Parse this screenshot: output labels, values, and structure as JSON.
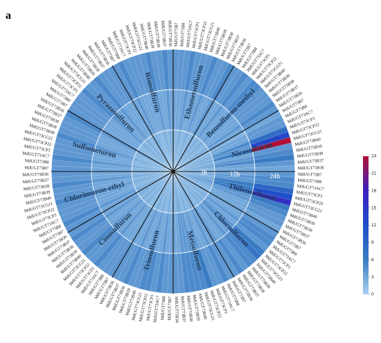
{
  "panel": {
    "label": "a"
  },
  "chart_data": {
    "type": "heatmap",
    "layout": "circular",
    "rings": [
      "3h",
      "12h",
      "24h"
    ],
    "herbicides": [
      {
        "name": "Nicosulfuron",
        "start": 0
      },
      {
        "name": "Thifensulfuron",
        "start": 11
      },
      {
        "name": "Chlorsulfuron",
        "start": 22
      },
      {
        "name": "Metsulfuron",
        "start": 33
      },
      {
        "name": "Trinsulfuron",
        "start": 44
      },
      {
        "name": "Cinosulfuron",
        "start": 55
      },
      {
        "name": "Chlorimuron-ethyl",
        "start": 66
      },
      {
        "name": "Sulfometuron",
        "start": 77
      },
      {
        "name": "Pyrazosulfuron",
        "start": 88
      },
      {
        "name": "Rimsulfuron",
        "start": 99
      },
      {
        "name": "Ethametsulfuron",
        "start": 110
      },
      {
        "name": "Bensulfuron-methyl",
        "start": 121
      }
    ],
    "genes": [
      "MdUGT73B7",
      "MdUGT73B8",
      "MdUGT73AC7",
      "MdUGT73CP3",
      "MdUGT73CP22",
      "MdUGT73CG21",
      "MdUGT73B40",
      "MdUGT73B39",
      "MdUGT73B38",
      "MdUGT73B37",
      "MdUGT73B36"
    ],
    "values": {
      "Nicosulfuron": [
        [
          1,
          2,
          2,
          3,
          2,
          3,
          2,
          3,
          3,
          2,
          2
        ],
        [
          2,
          3,
          3,
          5,
          4,
          6,
          3,
          4,
          5,
          3,
          3
        ],
        [
          3,
          4,
          4,
          8,
          13,
          24,
          4,
          5,
          6,
          4,
          3
        ]
      ],
      "Thifensulfuron": [
        [
          2,
          3,
          2,
          3,
          3,
          4,
          3,
          3,
          2,
          2,
          2
        ],
        [
          3,
          4,
          4,
          6,
          6,
          7,
          4,
          4,
          3,
          3,
          3
        ],
        [
          4,
          5,
          5,
          9,
          12,
          16,
          6,
          5,
          4,
          4,
          3
        ]
      ],
      "Chlorsulfuron": [
        [
          2,
          2,
          3,
          2,
          2,
          3,
          2,
          3,
          2,
          2,
          3
        ],
        [
          3,
          3,
          4,
          3,
          4,
          5,
          3,
          4,
          3,
          3,
          4
        ],
        [
          4,
          5,
          5,
          4,
          6,
          7,
          5,
          5,
          4,
          5,
          4
        ]
      ],
      "Metsulfuron": [
        [
          2,
          3,
          2,
          2,
          3,
          2,
          2,
          3,
          3,
          2,
          2
        ],
        [
          3,
          4,
          3,
          3,
          4,
          3,
          4,
          4,
          4,
          3,
          3
        ],
        [
          4,
          5,
          4,
          4,
          6,
          5,
          5,
          5,
          5,
          4,
          4
        ]
      ],
      "Trinsulfuron": [
        [
          2,
          2,
          3,
          2,
          2,
          3,
          2,
          2,
          3,
          2,
          2
        ],
        [
          3,
          3,
          4,
          3,
          3,
          4,
          3,
          3,
          4,
          3,
          3
        ],
        [
          4,
          4,
          5,
          4,
          5,
          5,
          4,
          4,
          5,
          4,
          4
        ]
      ],
      "Cinosulfuron": [
        [
          2,
          2,
          2,
          3,
          2,
          2,
          3,
          2,
          2,
          3,
          2
        ],
        [
          3,
          3,
          3,
          4,
          3,
          3,
          4,
          3,
          3,
          4,
          3
        ],
        [
          4,
          4,
          4,
          5,
          4,
          4,
          5,
          4,
          4,
          5,
          4
        ]
      ],
      "Chlorimuron-ethyl": [
        [
          2,
          3,
          2,
          2,
          2,
          3,
          2,
          2,
          3,
          2,
          2
        ],
        [
          3,
          4,
          3,
          3,
          3,
          4,
          3,
          3,
          4,
          3,
          3
        ],
        [
          4,
          5,
          4,
          4,
          4,
          5,
          4,
          4,
          5,
          4,
          4
        ]
      ],
      "Sulfometuron": [
        [
          2,
          2,
          3,
          2,
          2,
          2,
          3,
          2,
          2,
          2,
          3
        ],
        [
          3,
          3,
          4,
          3,
          3,
          3,
          4,
          3,
          3,
          3,
          4
        ],
        [
          4,
          4,
          5,
          4,
          4,
          4,
          5,
          4,
          4,
          4,
          5
        ]
      ],
      "Pyrazosulfuron": [
        [
          2,
          2,
          2,
          2,
          3,
          2,
          2,
          3,
          2,
          2,
          2
        ],
        [
          3,
          3,
          3,
          3,
          4,
          3,
          3,
          4,
          3,
          3,
          3
        ],
        [
          4,
          4,
          4,
          4,
          5,
          4,
          4,
          5,
          4,
          4,
          4
        ]
      ],
      "Rimsulfuron": [
        [
          2,
          3,
          2,
          2,
          2,
          2,
          3,
          2,
          2,
          3,
          2
        ],
        [
          3,
          4,
          3,
          3,
          3,
          3,
          4,
          3,
          3,
          4,
          3
        ],
        [
          4,
          5,
          4,
          4,
          4,
          4,
          5,
          4,
          4,
          5,
          4
        ]
      ],
      "Ethametsulfuron": [
        [
          2,
          2,
          2,
          3,
          2,
          2,
          2,
          3,
          2,
          2,
          3
        ],
        [
          3,
          3,
          3,
          4,
          3,
          3,
          3,
          4,
          3,
          3,
          4
        ],
        [
          4,
          4,
          4,
          5,
          4,
          4,
          4,
          5,
          4,
          4,
          5
        ]
      ],
      "Bensulfuron-methyl": [
        [
          2,
          2,
          3,
          2,
          2,
          3,
          2,
          2,
          2,
          3,
          2
        ],
        [
          3,
          3,
          4,
          3,
          3,
          4,
          3,
          3,
          3,
          4,
          3
        ],
        [
          4,
          4,
          5,
          4,
          5,
          5,
          4,
          4,
          4,
          5,
          4
        ]
      ]
    },
    "colorbar": {
      "ticks": [
        0,
        3,
        6,
        9,
        12,
        15,
        18,
        21,
        24
      ],
      "range": [
        0,
        24
      ],
      "colors": [
        "#a9d1f0",
        "#3a7cc3",
        "#1f4fc9",
        "#3d1fc0",
        "#b01035"
      ]
    },
    "grid": true,
    "legend": "right"
  }
}
